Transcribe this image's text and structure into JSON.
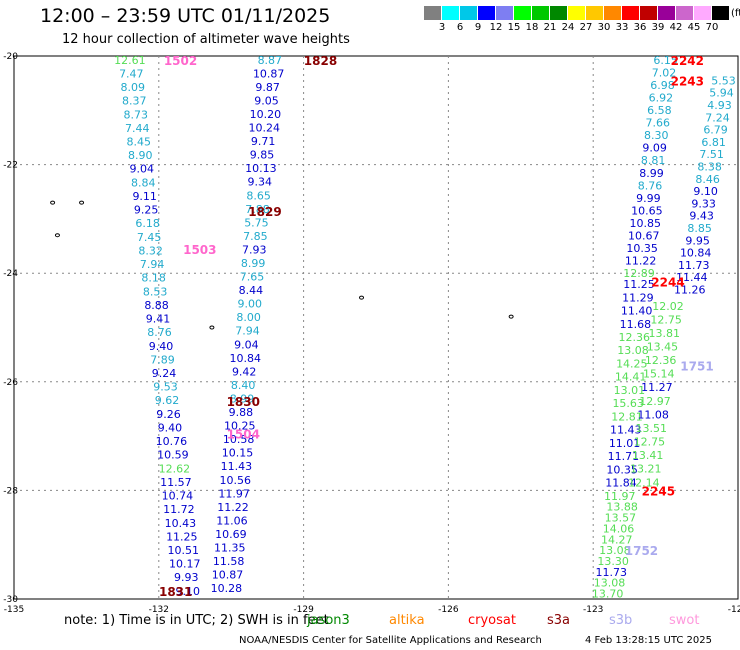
{
  "header": {
    "title": "12:00 – 23:59 UTC 01/11/2025",
    "subtitle": "12 hour collection of altimeter wave heights"
  },
  "legend": {
    "unit": "(ft)",
    "labels": [
      "3",
      "6",
      "9",
      "12",
      "15",
      "18",
      "21",
      "24",
      "27",
      "30",
      "33",
      "36",
      "39",
      "42",
      "45",
      "70"
    ],
    "colors": [
      "#808080",
      "#00ffff",
      "#00c8e8",
      "#0000ff",
      "#7e7ef2",
      "#00ff00",
      "#00c800",
      "#008800",
      "#ffff00",
      "#ffc800",
      "#ff8800",
      "#ff0000",
      "#c00000",
      "#990099",
      "#cc66cc",
      "#ffaaff",
      "#000000"
    ]
  },
  "axes": {
    "x_ticks": [
      "-135",
      "-132",
      "-129",
      "-126",
      "-123",
      "-120"
    ],
    "y_ticks": [
      "-20",
      "-22",
      "-24",
      "-26",
      "-28",
      "-30"
    ],
    "x_range": [
      -135,
      -120
    ],
    "y_range": [
      -30,
      -20
    ]
  },
  "colors": {
    "jason3": "#0000cc",
    "sentinel": "#22aacc",
    "lightgreen": "#55dd55",
    "darkred": "#880000",
    "red": "#ff0000",
    "pink": "#ff66cc",
    "lavender": "#aaaaee"
  },
  "time_labels": [
    {
      "text": "1828",
      "lon": -128.65,
      "lat": -20.07,
      "color": "#880000"
    },
    {
      "text": "1502",
      "lon": -131.55,
      "lat": -20.07,
      "color": "#ff66cc"
    },
    {
      "text": "1829",
      "lon": -129.8,
      "lat": -22.85,
      "color": "#880000"
    },
    {
      "text": "1503",
      "lon": -131.15,
      "lat": -23.55,
      "color": "#ff66cc"
    },
    {
      "text": "1830",
      "lon": -130.25,
      "lat": -26.35,
      "color": "#880000"
    },
    {
      "text": "1504",
      "lon": -130.25,
      "lat": -26.95,
      "color": "#ff66cc"
    },
    {
      "text": "1831",
      "lon": -131.65,
      "lat": -29.85,
      "color": "#880000"
    },
    {
      "text": "2242",
      "lon": -121.05,
      "lat": -20.07,
      "color": "#ff0000"
    },
    {
      "text": "2243",
      "lon": -121.05,
      "lat": -20.45,
      "color": "#ff0000"
    },
    {
      "text": "2244",
      "lon": -121.45,
      "lat": -24.15,
      "color": "#ff0000"
    },
    {
      "text": "2245",
      "lon": -121.65,
      "lat": -28.0,
      "color": "#ff0000"
    },
    {
      "text": "1751",
      "lon": -120.85,
      "lat": -25.7,
      "color": "#aaaaee"
    },
    {
      "text": "1752",
      "lon": -122.0,
      "lat": -29.1,
      "color": "#aaaaee"
    }
  ],
  "tracks": [
    {
      "name": "track-a",
      "lon_start": -132.6,
      "lon_end": -131.4,
      "lat_start": -20.07,
      "lat_end": -29.85,
      "values": [
        "12.61",
        "7.47",
        "8.09",
        "8.37",
        "8.73",
        "7.44",
        "8.45",
        "8.90",
        "9.04",
        "8.84",
        "9.11",
        "9.25",
        "6.18",
        "7.45",
        "8.32",
        "7.94",
        "8.18",
        "8.53",
        "8.88",
        "9.41",
        "8.76",
        "9.40",
        "7.89",
        "9.24",
        "9.53",
        "9.62",
        "9.26",
        "9.40",
        "10.76",
        "10.59",
        "12.62",
        "11.57",
        "10.74",
        "11.72",
        "10.43",
        "11.25",
        "10.51",
        "10.17",
        "9.93",
        "9.10"
      ],
      "colors": [
        "#55dd55",
        "#22aacc",
        "#22aacc",
        "#22aacc",
        "#22aacc",
        "#22aacc",
        "#22aacc",
        "#22aacc",
        "#0000cc",
        "#22aacc",
        "#0000cc",
        "#0000cc",
        "#22aacc",
        "#22aacc",
        "#22aacc",
        "#22aacc",
        "#22aacc",
        "#22aacc",
        "#0000cc",
        "#0000cc",
        "#22aacc",
        "#0000cc",
        "#22aacc",
        "#0000cc",
        "#22aacc",
        "#22aacc",
        "#0000cc",
        "#0000cc",
        "#0000cc",
        "#0000cc",
        "#55dd55",
        "#0000cc",
        "#0000cc",
        "#0000cc",
        "#0000cc",
        "#0000cc",
        "#0000cc",
        "#0000cc",
        "#0000cc",
        "#0000cc"
      ]
    },
    {
      "name": "track-b",
      "lon_start": -129.7,
      "lon_end": -130.6,
      "lat_start": -20.07,
      "lat_end": -29.8,
      "values": [
        "8.87",
        "10.87",
        "9.87",
        "9.05",
        "10.20",
        "10.24",
        "9.71",
        "9.85",
        "10.13",
        "9.34",
        "8.65",
        "7.88",
        "5.75",
        "7.85",
        "7.93",
        "8.99",
        "7.65",
        "8.44",
        "9.00",
        "8.00",
        "7.94",
        "9.04",
        "10.84",
        "9.42",
        "8.40",
        "8.99",
        "9.88",
        "10.25",
        "10.58",
        "10.15",
        "11.43",
        "10.56",
        "11.97",
        "11.22",
        "11.06",
        "10.69",
        "11.35",
        "11.58",
        "10.87",
        "10.28"
      ],
      "colors": [
        "#22aacc",
        "#0000cc",
        "#0000cc",
        "#0000cc",
        "#0000cc",
        "#0000cc",
        "#0000cc",
        "#0000cc",
        "#0000cc",
        "#0000cc",
        "#22aacc",
        "#22aacc",
        "#22aacc",
        "#22aacc",
        "#0000cc",
        "#22aacc",
        "#22aacc",
        "#0000cc",
        "#22aacc",
        "#22aacc",
        "#22aacc",
        "#0000cc",
        "#0000cc",
        "#0000cc",
        "#22aacc",
        "#22aacc",
        "#0000cc",
        "#0000cc",
        "#0000cc",
        "#0000cc",
        "#0000cc",
        "#0000cc",
        "#0000cc",
        "#0000cc",
        "#0000cc",
        "#0000cc",
        "#0000cc",
        "#0000cc",
        "#0000cc",
        "#0000cc"
      ]
    },
    {
      "name": "track-c",
      "lon_start": -120.35,
      "lon_end": -120.35,
      "lat_start": -20.07,
      "lat_end": -20.07,
      "values": [],
      "colors": []
    },
    {
      "name": "track-d",
      "lon_start": -121.5,
      "lon_end": -122.05,
      "lat_start": -20.07,
      "lat_end": -24.0,
      "values": [
        "6.15",
        "7.02",
        "6.98",
        "6.92",
        "6.58",
        "7.66",
        "8.30",
        "9.09",
        "8.81",
        "8.99",
        "8.76",
        "9.99",
        "10.65",
        "10.85",
        "10.67",
        "10.35",
        "11.22",
        "12.89"
      ],
      "colors": [
        "#22aacc",
        "#22aacc",
        "#22aacc",
        "#22aacc",
        "#22aacc",
        "#22aacc",
        "#22aacc",
        "#0000cc",
        "#22aacc",
        "#0000cc",
        "#22aacc",
        "#0000cc",
        "#0000cc",
        "#0000cc",
        "#0000cc",
        "#0000cc",
        "#0000cc",
        "#55dd55"
      ]
    },
    {
      "name": "track-e",
      "lon_start": -120.3,
      "lon_end": -121.0,
      "lat_start": -20.45,
      "lat_end": -24.3,
      "values": [
        "5.53",
        "5.94",
        "4.93",
        "7.24",
        "6.79",
        "6.81",
        "7.51",
        "8.38",
        "8.46",
        "9.10",
        "9.33",
        "9.43",
        "8.85",
        "9.95",
        "10.84",
        "11.73",
        "11.44",
        "11.26"
      ],
      "colors": [
        "#22aacc",
        "#22aacc",
        "#22aacc",
        "#22aacc",
        "#22aacc",
        "#22aacc",
        "#22aacc",
        "#22aacc",
        "#22aacc",
        "#0000cc",
        "#0000cc",
        "#0000cc",
        "#22aacc",
        "#0000cc",
        "#0000cc",
        "#0000cc",
        "#0000cc",
        "#0000cc"
      ]
    },
    {
      "name": "track-f",
      "lon_start": -122.05,
      "lon_end": -122.45,
      "lat_start": -24.2,
      "lat_end": -28.1,
      "values": [
        "11.25",
        "11.29",
        "11.40",
        "11.68",
        "12.36",
        "13.08",
        "14.25",
        "14.41",
        "13.01",
        "15.63",
        "12.81",
        "11.43",
        "11.01",
        "11.71",
        "10.35",
        "11.84",
        "11.97"
      ],
      "colors": [
        "#0000cc",
        "#0000cc",
        "#0000cc",
        "#0000cc",
        "#55dd55",
        "#55dd55",
        "#55dd55",
        "#55dd55",
        "#55dd55",
        "#55dd55",
        "#55dd55",
        "#0000cc",
        "#0000cc",
        "#0000cc",
        "#0000cc",
        "#0000cc",
        "#55dd55"
      ]
    },
    {
      "name": "track-g",
      "lon_start": -121.45,
      "lon_end": -121.95,
      "lat_start": -24.6,
      "lat_end": -27.85,
      "values": [
        "12.02",
        "12.75",
        "13.81",
        "13.45",
        "12.36",
        "15.14",
        "11.27",
        "12.97",
        "11.08",
        "13.51",
        "12.75",
        "13.41",
        "13.21",
        "12.14"
      ],
      "colors": [
        "#55dd55",
        "#55dd55",
        "#55dd55",
        "#55dd55",
        "#55dd55",
        "#55dd55",
        "#0000cc",
        "#55dd55",
        "#0000cc",
        "#55dd55",
        "#55dd55",
        "#55dd55",
        "#55dd55",
        "#55dd55"
      ]
    },
    {
      "name": "track-h",
      "lon_start": -122.4,
      "lon_end": -122.7,
      "lat_start": -28.3,
      "lat_end": -29.9,
      "values": [
        "13.88",
        "13.57",
        "14.06",
        "14.27",
        "13.08",
        "13.30",
        "11.73",
        "13.08",
        "13.70"
      ],
      "colors": [
        "#55dd55",
        "#55dd55",
        "#55dd55",
        "#55dd55",
        "#55dd55",
        "#55dd55",
        "#0000cc",
        "#55dd55",
        "#55dd55"
      ]
    }
  ],
  "islands": [
    {
      "lon": -134.2,
      "lat": -22.7
    },
    {
      "lon": -133.6,
      "lat": -22.7
    },
    {
      "lon": -134.1,
      "lat": -23.3
    },
    {
      "lon": -127.8,
      "lat": -24.45
    },
    {
      "lon": -130.9,
      "lat": -25.0
    },
    {
      "lon": -124.7,
      "lat": -24.8
    }
  ],
  "footer": {
    "note": "note: 1) Time is in UTC; 2) SWH is in feet",
    "missions": [
      {
        "name": "jason3",
        "color": "#008800"
      },
      {
        "name": "altika",
        "color": "#ff8800"
      },
      {
        "name": "cryosat",
        "color": "#ff0000"
      },
      {
        "name": "s3a",
        "color": "#880000"
      },
      {
        "name": "s3b",
        "color": "#aaaaee"
      },
      {
        "name": "swot",
        "color": "#ff99dd"
      }
    ],
    "credit": "NOAA/NESDIS Center for Satellite Applications and Research",
    "timestamp": "4 Feb 13:28:15 UTC 2025"
  }
}
